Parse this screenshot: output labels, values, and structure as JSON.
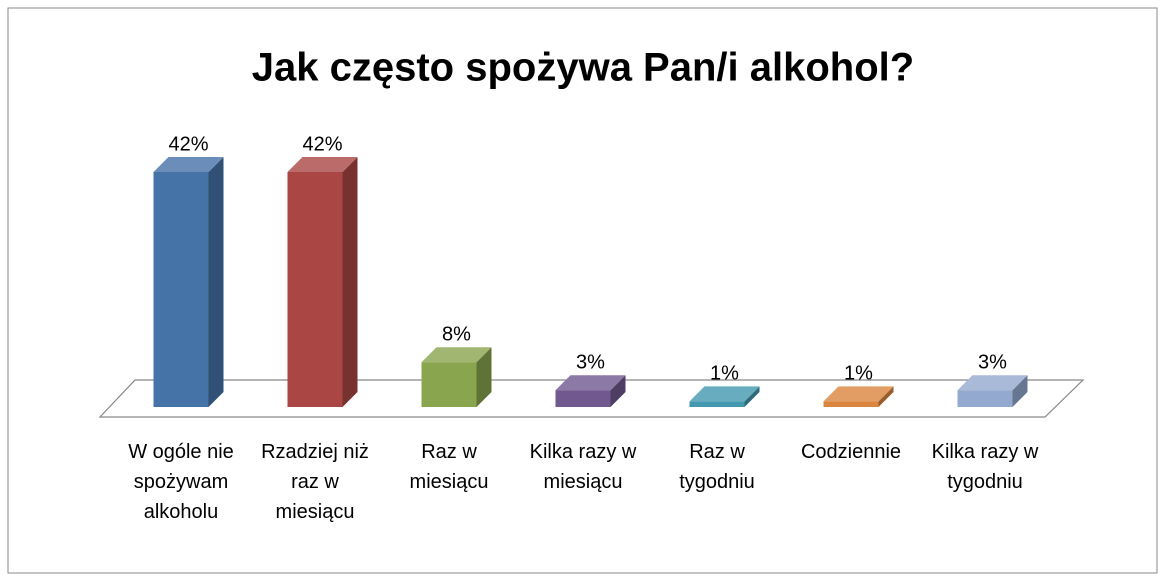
{
  "chart_data": {
    "type": "bar3d",
    "title": "Jak często spożywa Pan/i alkohol?",
    "categories": [
      "W ogóle nie spożywam alkoholu",
      "Rzadziej niż raz w miesiącu",
      "Raz w miesiącu",
      "Kilka razy w miesiącu",
      "Raz w tygodniu",
      "Codziennie",
      "Kilka razy w tygodniu"
    ],
    "values": [
      42,
      42,
      8,
      3,
      1,
      1,
      3
    ],
    "value_labels": [
      "42%",
      "42%",
      "8%",
      "3%",
      "1%",
      "1%",
      "3%"
    ],
    "colors": [
      "#4572a7",
      "#aa4643",
      "#89a54e",
      "#71588f",
      "#4198af",
      "#db843d",
      "#93a9cf"
    ]
  }
}
